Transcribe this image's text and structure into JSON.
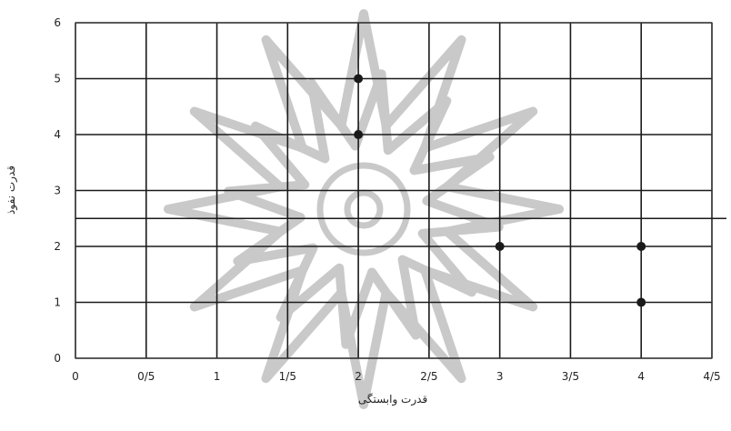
{
  "chart_data": {
    "type": "scatter",
    "xlabel": "قدرت وابستگی",
    "ylabel": "قدرت نفوذ",
    "xlim": [
      0,
      4.5
    ],
    "ylim": [
      0,
      6
    ],
    "x_ticks": [
      0,
      0.5,
      1,
      1.5,
      2,
      2.5,
      3,
      3.5,
      4,
      4.5
    ],
    "x_tick_labels": [
      "0",
      "0/5",
      "1",
      "1/5",
      "2",
      "2/5",
      "3",
      "3/5",
      "4",
      "4/5"
    ],
    "y_ticks": [
      0,
      1,
      2,
      3,
      4,
      5,
      6
    ],
    "y_tick_labels": [
      "0",
      "1",
      "2",
      "3",
      "4",
      "5",
      "6"
    ],
    "grid": true,
    "reference_line_y": 2.5,
    "points": [
      {
        "x": 2,
        "y": 5
      },
      {
        "x": 2,
        "y": 4
      },
      {
        "x": 3,
        "y": 2
      },
      {
        "x": 4,
        "y": 2
      },
      {
        "x": 4,
        "y": 1
      }
    ],
    "point_color": "#1a1a1a",
    "grid_color": "#1a1a1a",
    "watermark_color": "#c9c9c9"
  }
}
